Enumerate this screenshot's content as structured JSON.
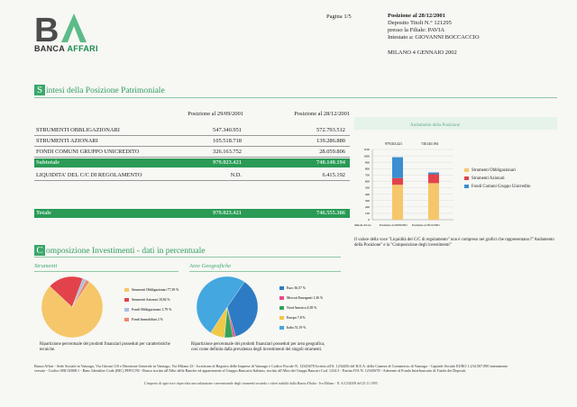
{
  "header": {
    "logo_letters": "BA",
    "logo_word1": "BANCA",
    "logo_word2": "AFFARI",
    "page": "Pagina 1/5",
    "info_lines": [
      "Posizione al  28/12/2001",
      "Deposito Titoli N.° 121295",
      "presso la Filiale:   PAVIA",
      "Intestato a: GIOVANNI BOCCACCIO"
    ],
    "place_date": "MILANO 4 GENNAIO   2002"
  },
  "section1": {
    "cap": "S",
    "title": "intesi della Posizione Patrimoniale",
    "col1": "Posizione al 29/09/2001",
    "col2": "Posizione al 28/12/2001",
    "rows": [
      {
        "label": "STRUMENTI OBBLIGAZIONARI",
        "v1": "547.340.951",
        "v2": "572.793.512"
      },
      {
        "label": "STRUMENTI AZIONARI",
        "v1": "105.518.718",
        "v2": "139.286.880"
      },
      {
        "label": "FONDI COMUNI GRUPPO UNICREDITO",
        "v1": "326.163.752",
        "v2": "28.059.806"
      }
    ],
    "subtotal": {
      "label": "Subtotale",
      "v1": "979.023.421",
      "v2": "740.140.194"
    },
    "liquidity": {
      "label": "LIQUIDITA' DEL C/C DI REGOLAMENTO",
      "v1": "N.D.",
      "v2": "6.415.192"
    },
    "total": {
      "label": "Totale",
      "v1": "979.023.421",
      "v2": "746.555.386"
    }
  },
  "bar_chart": {
    "title": "Andamento della Posizione",
    "top_label_1": "979.023.421",
    "top_label_2": "740.140.194",
    "axis_label": "milioni di Lire",
    "legend": [
      "Strumenti Obbligazionari",
      "Strumenti Azionari",
      "Fondi Comuni Gruppo Unicredito"
    ],
    "caption": "Il valore della voce \"Liquidità del C/C di regolamento\" non è compreso nei grafici che rappresentano l'\"Andamento della Posizione\" e la \"Composizione degli investimenti\""
  },
  "section2": {
    "cap": "C",
    "title": "omposizione Investimenti - dati in percentuale",
    "sub1": "Strumenti",
    "sub2": "Aree Geografiche",
    "caption1": "Ripartizione percentuale dei prodotti finanziari posseduti per caratteristiche tecniche.",
    "caption2": "Ripartizione percentuale dei prodotti finanziari posseduti per area geografica, così come definita dalla prevalenza degli investimenti dei singoli strumenti."
  },
  "chart_data": [
    {
      "type": "bar",
      "stacked": true,
      "title": "Andamento della Posizione",
      "categories": [
        "Posizione al 29/09/2001",
        "Posizione al 28/12/2001"
      ],
      "series": [
        {
          "name": "Strumenti Obbligazionari",
          "values": [
            547.3,
            572.8
          ],
          "color": "#f5c76a"
        },
        {
          "name": "Strumenti Azionari",
          "values": [
            105.5,
            139.3
          ],
          "color": "#e2434b"
        },
        {
          "name": "Fondi Comuni Gruppo Unicredito",
          "values": [
            326.2,
            28.1
          ],
          "color": "#3a8fd0"
        }
      ],
      "yticks": [
        0,
        100,
        200,
        300,
        400,
        500,
        600,
        700,
        800,
        900,
        1000,
        1100
      ],
      "ylim": [
        0,
        1100
      ],
      "ylabel": "milioni di Lire"
    },
    {
      "type": "pie",
      "title": "Strumenti",
      "labels": [
        "Strumenti Obbligazionari  77,39 %",
        "Strumenti Azionari  18,82 %",
        "Fondi Obbligazionari  1,79 %",
        "Fondi Immobiliari  2 %"
      ],
      "values": [
        77.39,
        18.82,
        1.79,
        2.0
      ],
      "colors": [
        "#f5c76a",
        "#e2434b",
        "#a8bfe0",
        "#e98a6a"
      ]
    },
    {
      "type": "pie",
      "title": "Aree Geografiche",
      "labels": [
        "Euro  36,57 %",
        "Mercati Emergenti  1,36 %",
        "Nord America  4,58 %",
        "Europa  7,8 %",
        "Italia  51,19 %"
      ],
      "values": [
        36.57,
        1.36,
        4.58,
        7.8,
        51.19
      ],
      "colors": [
        "#2c7bc4",
        "#e54b8a",
        "#35a25a",
        "#f0c84a",
        "#44a7e0"
      ]
    }
  ],
  "footer": {
    "line1": "Banca Affari - Sede Sociale in Vanzago, Via Gitrani 110 e Direzione Generale in Vanzago, Via Milano 23 - Iscrizione al Registro delle Imprese di Vanzago e Codice Fiscale N. 12345678 Iscritta all'A. 1234456 del R.E.A. della Camera di Commercio di Vanzago - Capitale Sociale EURO 1.234.567.890 interamente",
    "line2": "versato - Codice ABI 02008.1 - Banc Identifier Code (BIC) PIPCCNI - Banca iscritta all'Albo delle Banche ed appartenente al Gruppo Bancario Italiano, iscritto all'Albo dei Gruppi Bancari Cod. 1234.5 - Partita IVA N. 12345678 - Aderente al Fondo Interbancario di Tutela dei Depositi.",
    "line3": "L'importo di ogni voce rispecchia una valutazione convenzionale degli strumenti secondo i criteri stabiliti dalla Banca d'Italia - Iva Milano - N. A/1234508 del 25.11.1995"
  },
  "colors": {
    "green": "#2a9a55",
    "accent": "#3aa86a"
  }
}
